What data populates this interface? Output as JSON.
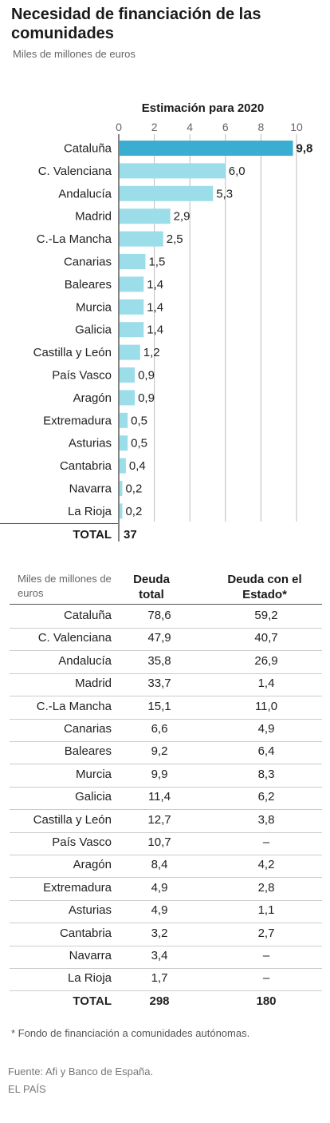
{
  "header": {
    "title": "Necesidad de financiación de las comunidades",
    "subtitle": "Miles de millones de euros"
  },
  "chart_data": {
    "type": "bar",
    "orientation": "horizontal",
    "title": "Estimación para 2020",
    "xlim": [
      0,
      10
    ],
    "xticks": [
      "0",
      "2",
      "4",
      "6",
      "8",
      "10"
    ],
    "grid": true,
    "categories": [
      "Cataluña",
      "C. Valenciana",
      "Andalucía",
      "Madrid",
      "C.-La Mancha",
      "Canarias",
      "Baleares",
      "Murcia",
      "Galicia",
      "Castilla y León",
      "País Vasco",
      "Aragón",
      "Extremadura",
      "Asturias",
      "Cantabria",
      "Navarra",
      "La Rioja"
    ],
    "values": [
      9.8,
      6.0,
      5.3,
      2.9,
      2.5,
      1.5,
      1.4,
      1.4,
      1.4,
      1.2,
      0.9,
      0.9,
      0.5,
      0.5,
      0.4,
      0.2,
      0.2
    ],
    "value_labels": [
      "9,8",
      "6,0",
      "5,3",
      "2,9",
      "2,5",
      "1,5",
      "1,4",
      "1,4",
      "1,4",
      "1,2",
      "0,9",
      "0,9",
      "0,5",
      "0,5",
      "0,4",
      "0,2",
      "0,2"
    ],
    "highlight_index": 0,
    "colors": {
      "highlight": "#3aaed0",
      "bar": "#9bdde9",
      "grid": "#bbbbbb"
    },
    "total_label": "TOTAL",
    "total_value": "37"
  },
  "table": {
    "note": "Miles de millones de euros",
    "col_debt": "Deuda total",
    "col_state": "Deuda con el Estado*",
    "rows": [
      {
        "name": "Cataluña",
        "debt": "78,6",
        "state": "59,2"
      },
      {
        "name": "C. Valenciana",
        "debt": "47,9",
        "state": "40,7"
      },
      {
        "name": "Andalucía",
        "debt": "35,8",
        "state": "26,9"
      },
      {
        "name": "Madrid",
        "debt": "33,7",
        "state": "1,4"
      },
      {
        "name": "C.-La Mancha",
        "debt": "15,1",
        "state": "11,0"
      },
      {
        "name": "Canarias",
        "debt": "6,6",
        "state": "4,9"
      },
      {
        "name": "Baleares",
        "debt": "9,2",
        "state": "6,4"
      },
      {
        "name": "Murcia",
        "debt": "9,9",
        "state": "8,3"
      },
      {
        "name": "Galicia",
        "debt": "11,4",
        "state": "6,2"
      },
      {
        "name": "Castilla y León",
        "debt": "12,7",
        "state": "3,8"
      },
      {
        "name": "País Vasco",
        "debt": "10,7",
        "state": "–"
      },
      {
        "name": "Aragón",
        "debt": "8,4",
        "state": "4,2"
      },
      {
        "name": "Extremadura",
        "debt": "4,9",
        "state": "2,8"
      },
      {
        "name": "Asturias",
        "debt": "4,9",
        "state": "1,1"
      },
      {
        "name": "Cantabria",
        "debt": "3,2",
        "state": "2,7"
      },
      {
        "name": "Navarra",
        "debt": "3,4",
        "state": "–"
      },
      {
        "name": "La Rioja",
        "debt": "1,7",
        "state": "–"
      }
    ],
    "total": {
      "name": "TOTAL",
      "debt": "298",
      "state": "180"
    }
  },
  "footer": {
    "footnote": "* Fondo de financiación a comunidades autónomas.",
    "source": "Fuente: Afi y Banco de España.",
    "brand": "EL PAÍS"
  }
}
